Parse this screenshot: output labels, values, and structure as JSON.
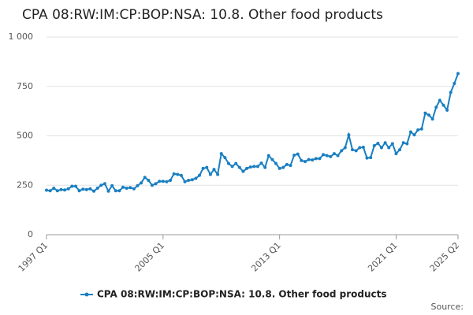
{
  "chart_data": {
    "type": "line",
    "title": "CPA 08:RW:IM:CP:BOP:NSA: 10.8. Other food products",
    "source": "Source:",
    "categories": [
      "1997 Q1",
      null,
      null,
      null,
      null,
      null,
      null,
      null,
      null,
      null,
      null,
      null,
      null,
      null,
      null,
      null,
      null,
      null,
      null,
      null,
      null,
      null,
      null,
      null,
      null,
      null,
      null,
      null,
      null,
      null,
      null,
      null,
      "2005 Q1",
      null,
      null,
      null,
      null,
      null,
      null,
      null,
      null,
      null,
      null,
      null,
      null,
      null,
      null,
      null,
      null,
      null,
      null,
      null,
      null,
      null,
      null,
      null,
      null,
      null,
      null,
      null,
      null,
      null,
      null,
      null,
      "2013 Q1",
      null,
      null,
      null,
      null,
      null,
      null,
      null,
      null,
      null,
      null,
      null,
      null,
      null,
      null,
      null,
      null,
      null,
      null,
      null,
      null,
      null,
      null,
      null,
      null,
      null,
      null,
      null,
      null,
      null,
      null,
      null,
      "2021 Q1",
      null,
      null,
      null,
      null,
      null,
      null,
      null,
      null,
      null,
      null,
      null,
      null,
      null,
      null,
      null,
      null,
      "2025 Q2"
    ],
    "series": [
      {
        "name": "CPA 08:RW:IM:CP:BOP:NSA: 10.8. Other food products",
        "color": "#1a7fc1",
        "values": [
          225,
          222,
          235,
          222,
          228,
          226,
          232,
          245,
          245,
          222,
          230,
          228,
          232,
          220,
          235,
          250,
          258,
          220,
          248,
          222,
          222,
          240,
          235,
          238,
          232,
          248,
          262,
          290,
          275,
          250,
          258,
          270,
          270,
          268,
          275,
          308,
          305,
          300,
          268,
          275,
          278,
          285,
          300,
          335,
          340,
          305,
          330,
          305,
          410,
          390,
          360,
          345,
          360,
          340,
          320,
          335,
          342,
          345,
          345,
          362,
          340,
          400,
          380,
          360,
          335,
          340,
          355,
          350,
          402,
          408,
          375,
          370,
          380,
          378,
          385,
          385,
          405,
          400,
          395,
          410,
          400,
          425,
          440,
          505,
          430,
          425,
          440,
          442,
          388,
          390,
          450,
          462,
          440,
          465,
          440,
          460,
          410,
          430,
          465,
          460,
          520,
          505,
          530,
          535,
          615,
          605,
          585,
          645,
          680,
          655,
          630,
          720,
          765,
          815
        ]
      }
    ],
    "ylim": [
      0,
      1000
    ],
    "yticks": [
      0,
      250,
      500,
      750,
      {
        "value": 1000,
        "label": "1 000"
      }
    ],
    "grid": true,
    "legend": "bottom"
  }
}
